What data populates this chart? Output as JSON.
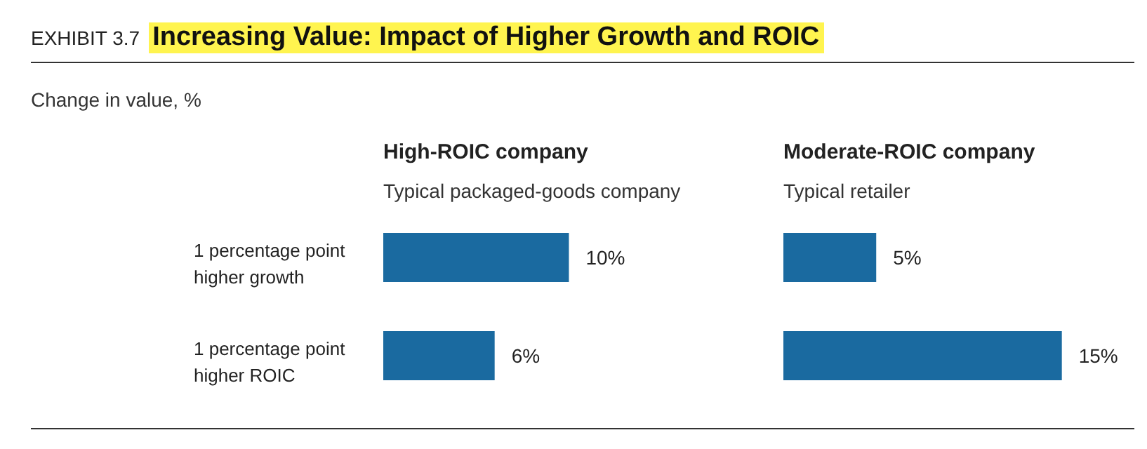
{
  "chart_data": [
    {
      "type": "bar",
      "orientation": "horizontal",
      "title": "High-ROIC company",
      "subtitle": "Typical packaged-goods company",
      "annotations": [
        "EXHIBIT 3.7",
        "Increasing Value: Impact of Higher Growth and ROIC",
        "Change in value, %"
      ],
      "categories": [
        "1 percentage point higher growth",
        "1 percentage point higher ROIC"
      ],
      "values": [
        10,
        6
      ],
      "value_labels": [
        "10%",
        "6%"
      ],
      "color": "#1a6aa0",
      "tick_labels": "y",
      "grid": false,
      "legend": false
    },
    {
      "type": "bar",
      "orientation": "horizontal",
      "title": "Moderate-ROIC company",
      "subtitle": "Typical retailer",
      "categories": [
        null,
        null
      ],
      "values": [
        5,
        15
      ],
      "value_labels": [
        "5%",
        "15%"
      ],
      "color": "#1a6aa0",
      "tick_labels": false,
      "grid": false,
      "legend": false
    }
  ]
}
